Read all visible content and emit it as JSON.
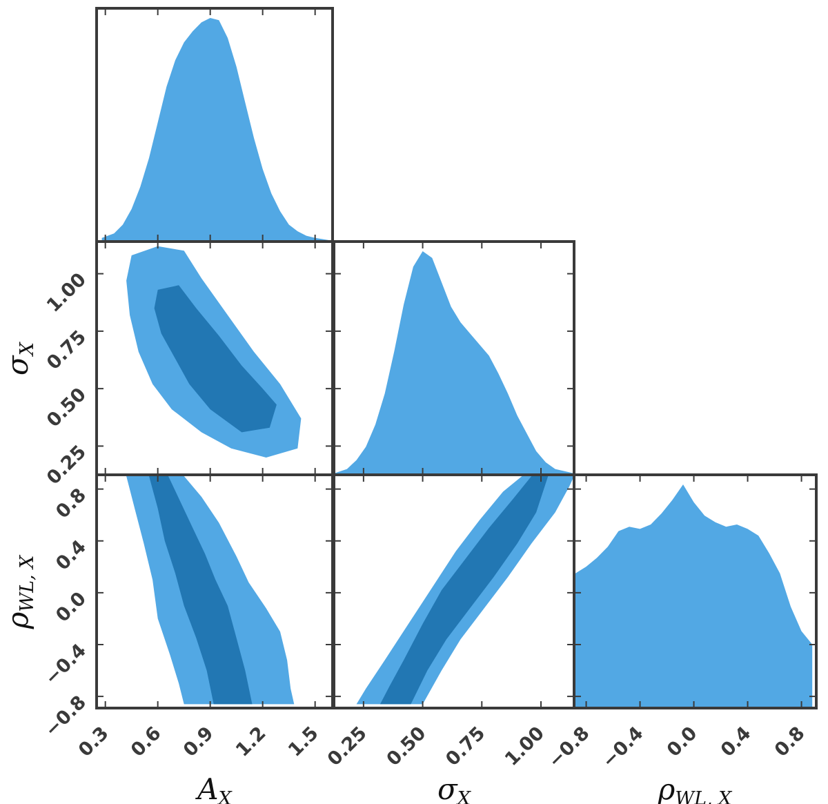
{
  "chart_data": {
    "type": "corner",
    "colors": {
      "outer": "#52a8e4",
      "inner": "#2277b3",
      "frame": "#3a3a3a",
      "text": "#3a3a3a"
    },
    "parameters": [
      {
        "id": "A",
        "symbol": "A",
        "subscript": "X",
        "range": [
          0.25,
          1.6
        ],
        "ticks": [
          "0.3",
          "0.6",
          "0.9",
          "1.2",
          "1.5"
        ]
      },
      {
        "id": "S",
        "symbol": "σ",
        "subscript": "X",
        "range": [
          0.125,
          1.14
        ],
        "ticks": [
          "0.25",
          "0.50",
          "0.75",
          "1.00"
        ]
      },
      {
        "id": "R",
        "symbol": "ρ",
        "subscript": "WL, X",
        "range": [
          -0.89,
          0.91
        ],
        "ticks": [
          "-0.8",
          "-0.4",
          "0.0",
          "0.4",
          "0.8"
        ]
      }
    ],
    "marginals": [
      {
        "param": "A",
        "x": [
          0.28,
          0.35,
          0.4,
          0.45,
          0.5,
          0.55,
          0.6,
          0.65,
          0.7,
          0.75,
          0.8,
          0.85,
          0.9,
          0.95,
          1.0,
          1.05,
          1.1,
          1.15,
          1.2,
          1.25,
          1.3,
          1.35,
          1.4,
          1.45,
          1.5,
          1.58
        ],
        "density": [
          0.01,
          0.03,
          0.07,
          0.14,
          0.24,
          0.37,
          0.53,
          0.69,
          0.81,
          0.89,
          0.94,
          0.98,
          1.0,
          0.99,
          0.91,
          0.78,
          0.62,
          0.46,
          0.32,
          0.21,
          0.13,
          0.07,
          0.04,
          0.02,
          0.01,
          0.0
        ]
      },
      {
        "param": "S",
        "x": [
          0.125,
          0.18,
          0.22,
          0.26,
          0.3,
          0.34,
          0.38,
          0.42,
          0.46,
          0.5,
          0.54,
          0.58,
          0.62,
          0.66,
          0.7,
          0.74,
          0.78,
          0.82,
          0.86,
          0.9,
          0.94,
          0.98,
          1.02,
          1.06,
          1.1,
          1.14
        ],
        "density": [
          0.0,
          0.02,
          0.06,
          0.12,
          0.22,
          0.36,
          0.55,
          0.76,
          0.93,
          1.0,
          0.97,
          0.86,
          0.75,
          0.68,
          0.63,
          0.58,
          0.53,
          0.45,
          0.36,
          0.26,
          0.18,
          0.1,
          0.05,
          0.02,
          0.01,
          0.0
        ]
      },
      {
        "param": "R",
        "x": [
          -0.88,
          -0.8,
          -0.72,
          -0.64,
          -0.56,
          -0.48,
          -0.4,
          -0.32,
          -0.24,
          -0.16,
          -0.08,
          0.0,
          0.08,
          0.16,
          0.24,
          0.32,
          0.4,
          0.48,
          0.56,
          0.64,
          0.72,
          0.8,
          0.88
        ],
        "density": [
          0.6,
          0.63,
          0.67,
          0.72,
          0.79,
          0.81,
          0.8,
          0.82,
          0.87,
          0.93,
          1.0,
          0.92,
          0.86,
          0.83,
          0.81,
          0.82,
          0.8,
          0.77,
          0.69,
          0.6,
          0.45,
          0.34,
          0.28
        ]
      }
    ],
    "contours": [
      {
        "x": "A",
        "y": "S",
        "outer": [
          [
            0.45,
            1.08
          ],
          [
            0.6,
            1.12
          ],
          [
            0.75,
            1.1
          ],
          [
            0.85,
            0.98
          ],
          [
            1.0,
            0.82
          ],
          [
            1.15,
            0.66
          ],
          [
            1.3,
            0.52
          ],
          [
            1.42,
            0.37
          ],
          [
            1.4,
            0.24
          ],
          [
            1.22,
            0.2
          ],
          [
            1.02,
            0.24
          ],
          [
            0.85,
            0.31
          ],
          [
            0.68,
            0.41
          ],
          [
            0.57,
            0.52
          ],
          [
            0.49,
            0.66
          ],
          [
            0.44,
            0.82
          ],
          [
            0.42,
            0.97
          ]
        ],
        "inner": [
          [
            0.6,
            0.93
          ],
          [
            0.72,
            0.95
          ],
          [
            0.82,
            0.85
          ],
          [
            0.95,
            0.73
          ],
          [
            1.08,
            0.6
          ],
          [
            1.2,
            0.5
          ],
          [
            1.28,
            0.43
          ],
          [
            1.24,
            0.33
          ],
          [
            1.08,
            0.31
          ],
          [
            0.9,
            0.41
          ],
          [
            0.78,
            0.52
          ],
          [
            0.7,
            0.63
          ],
          [
            0.62,
            0.74
          ],
          [
            0.58,
            0.85
          ]
        ]
      },
      {
        "x": "A",
        "y": "R",
        "outer": [
          [
            0.42,
            0.9
          ],
          [
            0.75,
            0.9
          ],
          [
            0.85,
            0.74
          ],
          [
            0.95,
            0.54
          ],
          [
            1.05,
            0.28
          ],
          [
            1.12,
            0.08
          ],
          [
            1.22,
            -0.12
          ],
          [
            1.3,
            -0.3
          ],
          [
            1.34,
            -0.52
          ],
          [
            1.36,
            -0.74
          ],
          [
            1.38,
            -0.86
          ],
          [
            0.75,
            -0.86
          ],
          [
            0.72,
            -0.7
          ],
          [
            0.67,
            -0.48
          ],
          [
            0.6,
            -0.2
          ],
          [
            0.57,
            0.1
          ],
          [
            0.52,
            0.38
          ],
          [
            0.47,
            0.64
          ]
        ],
        "inner": [
          [
            0.55,
            0.9
          ],
          [
            0.66,
            0.9
          ],
          [
            0.73,
            0.7
          ],
          [
            0.8,
            0.5
          ],
          [
            0.87,
            0.3
          ],
          [
            0.93,
            0.1
          ],
          [
            1.0,
            -0.1
          ],
          [
            1.05,
            -0.35
          ],
          [
            1.1,
            -0.6
          ],
          [
            1.14,
            -0.86
          ],
          [
            0.92,
            -0.86
          ],
          [
            0.88,
            -0.6
          ],
          [
            0.82,
            -0.35
          ],
          [
            0.75,
            -0.1
          ],
          [
            0.7,
            0.15
          ],
          [
            0.64,
            0.4
          ],
          [
            0.6,
            0.65
          ]
        ]
      },
      {
        "x": "S",
        "y": "R",
        "outer": [
          [
            0.22,
            -0.86
          ],
          [
            0.5,
            -0.86
          ],
          [
            0.58,
            -0.6
          ],
          [
            0.66,
            -0.36
          ],
          [
            0.76,
            -0.12
          ],
          [
            0.86,
            0.12
          ],
          [
            0.96,
            0.38
          ],
          [
            1.06,
            0.62
          ],
          [
            1.12,
            0.82
          ],
          [
            1.14,
            0.9
          ],
          [
            0.92,
            0.9
          ],
          [
            0.84,
            0.78
          ],
          [
            0.74,
            0.56
          ],
          [
            0.64,
            0.32
          ],
          [
            0.54,
            0.04
          ],
          [
            0.44,
            -0.24
          ],
          [
            0.34,
            -0.52
          ],
          [
            0.26,
            -0.74
          ]
        ],
        "inner": [
          [
            0.32,
            -0.86
          ],
          [
            0.45,
            -0.86
          ],
          [
            0.52,
            -0.6
          ],
          [
            0.6,
            -0.36
          ],
          [
            0.7,
            -0.12
          ],
          [
            0.8,
            0.12
          ],
          [
            0.9,
            0.38
          ],
          [
            0.98,
            0.62
          ],
          [
            1.03,
            0.9
          ],
          [
            0.96,
            0.9
          ],
          [
            0.88,
            0.72
          ],
          [
            0.78,
            0.5
          ],
          [
            0.68,
            0.26
          ],
          [
            0.58,
            0.02
          ],
          [
            0.5,
            -0.24
          ],
          [
            0.42,
            -0.52
          ],
          [
            0.36,
            -0.72
          ]
        ]
      }
    ]
  }
}
